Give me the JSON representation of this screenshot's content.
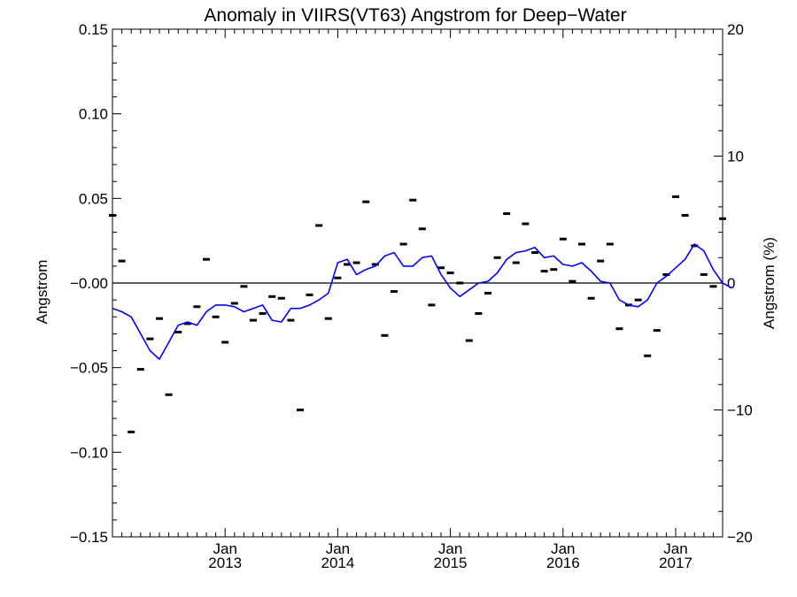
{
  "chart_data": {
    "type": "line",
    "title": "Anomaly in VIIRS(VT63) Angstrom for Deep−Water",
    "ylabel_left": "Angstrom",
    "ylabel_right": "Angstrom (%)",
    "ylim_left": [
      -0.15,
      0.15
    ],
    "ylim_right": [
      -20,
      20
    ],
    "xlim": [
      "2012-01",
      "2017-06"
    ],
    "x_ticks": [
      {
        "date": "2013-01",
        "top": "Jan",
        "bottom": "2013"
      },
      {
        "date": "2014-01",
        "top": "Jan",
        "bottom": "2014"
      },
      {
        "date": "2015-01",
        "top": "Jan",
        "bottom": "2015"
      },
      {
        "date": "2016-01",
        "top": "Jan",
        "bottom": "2016"
      },
      {
        "date": "2017-01",
        "top": "Jan",
        "bottom": "2017"
      }
    ],
    "y_ticks_left": [
      "0.15",
      "0.10",
      "0.05",
      "−0.00",
      "−0.05",
      "−0.10",
      "−0.15"
    ],
    "y_ticks_right": [
      "20",
      "10",
      "0",
      "−10",
      "−20"
    ],
    "zero_line": true,
    "series": [
      {
        "kind": "monthly_markers",
        "color": "#000000",
        "x": [
          "2012-01",
          "2012-02",
          "2012-03",
          "2012-04",
          "2012-05",
          "2012-06",
          "2012-07",
          "2012-08",
          "2012-09",
          "2012-10",
          "2012-11",
          "2012-12",
          "2013-01",
          "2013-02",
          "2013-03",
          "2013-04",
          "2013-05",
          "2013-06",
          "2013-07",
          "2013-08",
          "2013-09",
          "2013-10",
          "2013-11",
          "2013-12",
          "2014-01",
          "2014-02",
          "2014-03",
          "2014-04",
          "2014-05",
          "2014-06",
          "2014-07",
          "2014-08",
          "2014-09",
          "2014-10",
          "2014-11",
          "2014-12",
          "2015-01",
          "2015-02",
          "2015-03",
          "2015-04",
          "2015-05",
          "2015-06",
          "2015-07",
          "2015-08",
          "2015-09",
          "2015-10",
          "2015-11",
          "2015-12",
          "2016-01",
          "2016-02",
          "2016-03",
          "2016-04",
          "2016-05",
          "2016-06",
          "2016-07",
          "2016-08",
          "2016-09",
          "2016-10",
          "2016-11",
          "2016-12",
          "2017-01",
          "2017-02",
          "2017-03",
          "2017-04",
          "2017-05",
          "2017-06"
        ],
        "y": [
          0.04,
          0.013,
          -0.088,
          -0.051,
          -0.033,
          -0.021,
          -0.066,
          -0.029,
          -0.024,
          -0.014,
          0.014,
          -0.02,
          -0.035,
          -0.012,
          -0.002,
          -0.022,
          -0.018,
          -0.008,
          -0.009,
          -0.022,
          -0.075,
          -0.007,
          0.034,
          -0.021,
          0.003,
          0.011,
          0.012,
          0.048,
          0.011,
          -0.031,
          -0.005,
          0.023,
          0.049,
          0.032,
          -0.013,
          0.009,
          0.006,
          0.0,
          -0.034,
          -0.018,
          -0.006,
          0.015,
          0.041,
          0.012,
          0.035,
          0.018,
          0.007,
          0.008,
          0.026,
          0.001,
          0.023,
          -0.009,
          0.013,
          0.023,
          -0.027,
          -0.013,
          -0.01,
          -0.043,
          -0.028,
          0.005,
          0.051,
          0.04,
          0.022,
          0.005,
          -0.002,
          0.038
        ]
      },
      {
        "kind": "running_mean",
        "color": "#0000ff",
        "x": [
          "2012-01",
          "2012-02",
          "2012-03",
          "2012-04",
          "2012-05",
          "2012-06",
          "2012-07",
          "2012-08",
          "2012-09",
          "2012-10",
          "2012-11",
          "2012-12",
          "2013-01",
          "2013-02",
          "2013-03",
          "2013-04",
          "2013-05",
          "2013-06",
          "2013-07",
          "2013-08",
          "2013-09",
          "2013-10",
          "2013-11",
          "2013-12",
          "2014-01",
          "2014-02",
          "2014-03",
          "2014-04",
          "2014-05",
          "2014-06",
          "2014-07",
          "2014-08",
          "2014-09",
          "2014-10",
          "2014-11",
          "2014-12",
          "2015-01",
          "2015-02",
          "2015-03",
          "2015-04",
          "2015-05",
          "2015-06",
          "2015-07",
          "2015-08",
          "2015-09",
          "2015-10",
          "2015-11",
          "2015-12",
          "2016-01",
          "2016-02",
          "2016-03",
          "2016-04",
          "2016-05",
          "2016-06",
          "2016-07",
          "2016-08",
          "2016-09",
          "2016-10",
          "2016-11",
          "2016-12",
          "2017-01",
          "2017-02",
          "2017-03",
          "2017-04",
          "2017-05",
          "2017-06",
          "2017-07"
        ],
        "y": [
          -0.015,
          -0.017,
          -0.02,
          -0.03,
          -0.04,
          -0.045,
          -0.035,
          -0.025,
          -0.023,
          -0.025,
          -0.017,
          -0.013,
          -0.013,
          -0.014,
          -0.017,
          -0.015,
          -0.013,
          -0.022,
          -0.023,
          -0.015,
          -0.015,
          -0.013,
          -0.01,
          -0.006,
          0.012,
          0.014,
          0.005,
          0.008,
          0.01,
          0.016,
          0.018,
          0.01,
          0.01,
          0.015,
          0.016,
          0.005,
          -0.003,
          -0.008,
          -0.004,
          0.0,
          0.001,
          0.006,
          0.014,
          0.018,
          0.019,
          0.021,
          0.015,
          0.016,
          0.011,
          0.01,
          0.012,
          0.007,
          0.001,
          0.0,
          -0.01,
          -0.013,
          -0.014,
          -0.01,
          0.0,
          0.004,
          0.009,
          0.014,
          0.023,
          0.019,
          0.008,
          0.0,
          -0.003
        ]
      }
    ]
  }
}
